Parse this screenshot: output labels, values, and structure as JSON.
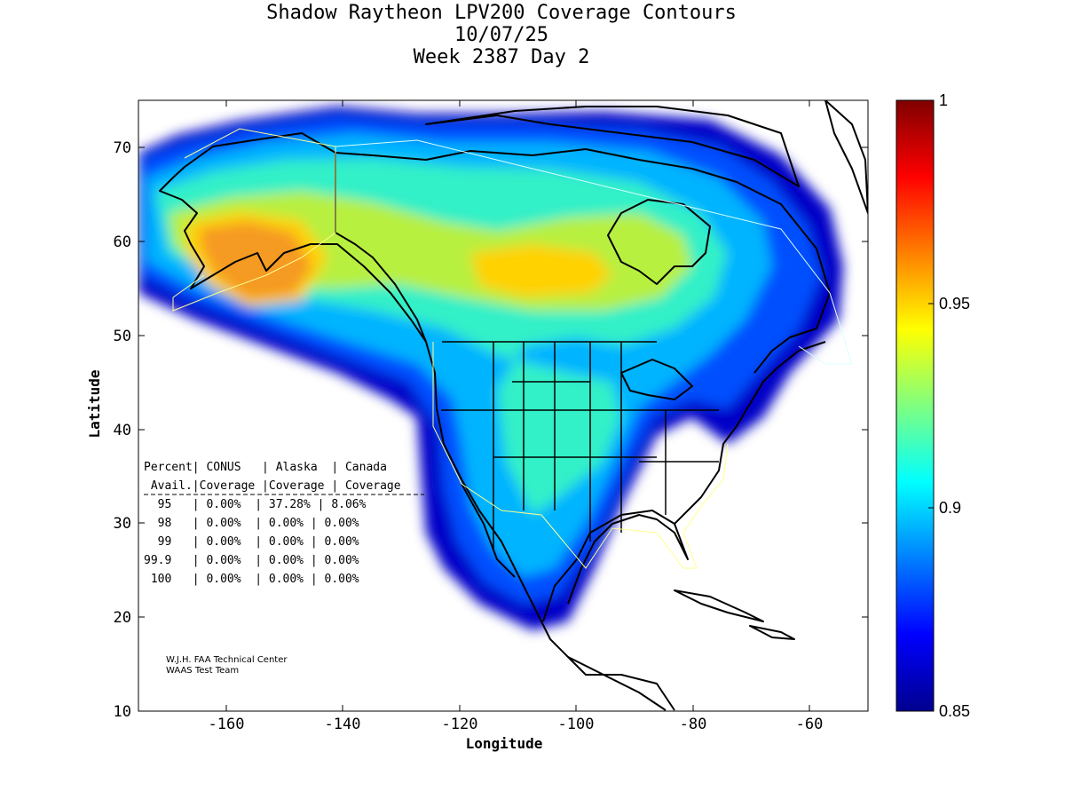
{
  "header": {
    "title_line1": "Shadow Raytheon LPV200 Coverage Contours",
    "title_line2": "10/07/25",
    "title_line3": "Week 2387 Day 2"
  },
  "axes": {
    "xlabel": "Longitude",
    "ylabel": "Latitude",
    "xlim": [
      -175,
      -50
    ],
    "ylim": [
      10,
      75
    ],
    "x_ticks": [
      -160,
      -140,
      -120,
      -100,
      -80,
      -60
    ],
    "y_ticks": [
      10,
      20,
      30,
      40,
      50,
      60,
      70
    ]
  },
  "colorbar": {
    "min": 0.85,
    "max": 1,
    "ticks": [
      "0.85",
      "0.9",
      "0.95",
      "1"
    ]
  },
  "stats_table": {
    "header_row1": "Percent| CONUS   | Alaska  | Canada",
    "header_row2": " Avail.|Coverage |Coverage | Coverage",
    "rows": [
      "  95   | 0.00%  | 37.28% | 8.06%",
      "  98   | 0.00%  | 0.00% | 0.00%",
      "  99   | 0.00%  | 0.00% | 0.00%",
      "99.9   | 0.00%  | 0.00% | 0.00%",
      " 100   | 0.00%  | 0.00% | 0.00%"
    ]
  },
  "credits": {
    "line1": "W.J.H. FAA Technical Center",
    "line2": "WAAS Test Team"
  },
  "coverage": {
    "regions": [
      {
        "name": "Alaska peak",
        "lon": -153,
        "lat": 57,
        "value": 0.955
      },
      {
        "name": "Canada peak",
        "lon": -103,
        "lat": 56,
        "value": 0.95
      },
      {
        "name": "CONUS interior",
        "lon": -108,
        "lat": 40,
        "value": 0.905
      },
      {
        "name": "Northeast edge",
        "lon": -76,
        "lat": 42,
        "value": 0.87
      }
    ]
  }
}
